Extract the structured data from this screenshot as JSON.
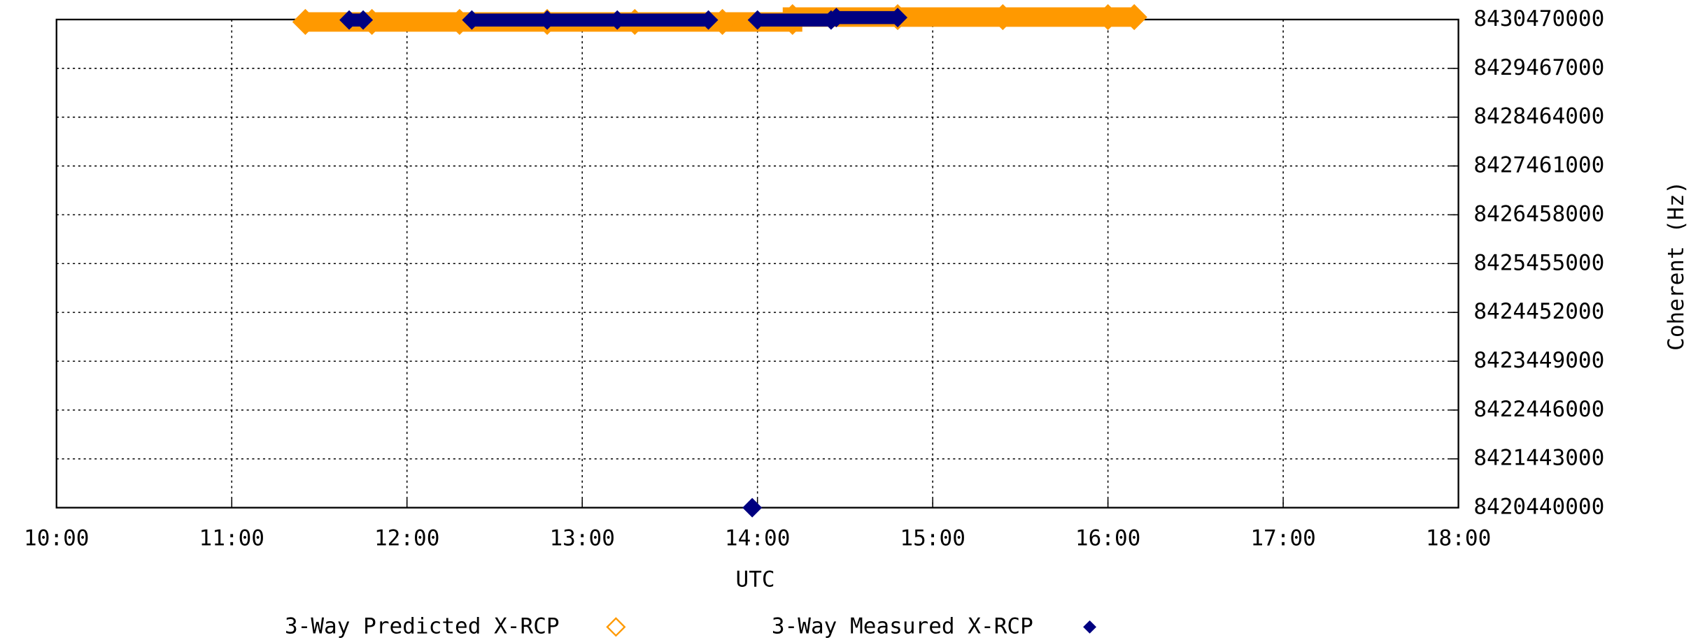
{
  "chart_data": {
    "type": "line",
    "x_label": "UTC",
    "y_label": "Coherent (Hz)",
    "yaxis_position": "right",
    "grid": true,
    "xlim": [
      10,
      18
    ],
    "xticks": [
      {
        "value": 10,
        "label": "10:00"
      },
      {
        "value": 11,
        "label": "11:00"
      },
      {
        "value": 12,
        "label": "12:00"
      },
      {
        "value": 13,
        "label": "13:00"
      },
      {
        "value": 14,
        "label": "14:00"
      },
      {
        "value": 15,
        "label": "15:00"
      },
      {
        "value": 16,
        "label": "16:00"
      },
      {
        "value": 17,
        "label": "17:00"
      },
      {
        "value": 18,
        "label": "18:00"
      }
    ],
    "ylim": [
      8420440000,
      8430470000
    ],
    "yticks": [
      8420440000,
      8421443000,
      8422446000,
      8423449000,
      8424452000,
      8425455000,
      8426458000,
      8427461000,
      8428464000,
      8429467000,
      8430470000
    ],
    "series": [
      {
        "name": "3-Way Predicted X-RCP",
        "color": "#ff9900",
        "marker": "hollow-diamond",
        "x": [
          11.42,
          11.8,
          12.3,
          12.8,
          13.3,
          13.8,
          14.2,
          14.2,
          14.8,
          15.4,
          16.0,
          16.15
        ],
        "values": [
          8430420000,
          8430420000,
          8430420000,
          8430420000,
          8430420000,
          8430420000,
          8430420000,
          8430520000,
          8430520000,
          8430520000,
          8430520000,
          8430520000
        ]
      },
      {
        "name": "3-Way Measured X-RCP",
        "color": "#000080",
        "marker": "filled-diamond",
        "x": [
          11.67,
          11.75,
          null,
          12.37,
          12.8,
          13.2,
          13.72,
          null,
          13.97,
          null,
          14.0,
          14.42,
          14.45,
          14.8
        ],
        "values": [
          8430460000,
          8430460000,
          null,
          8430460000,
          8430460000,
          8430460000,
          8430460000,
          null,
          8420440000,
          null,
          8430460000,
          8430460000,
          8430510000,
          8430510000
        ]
      }
    ]
  }
}
